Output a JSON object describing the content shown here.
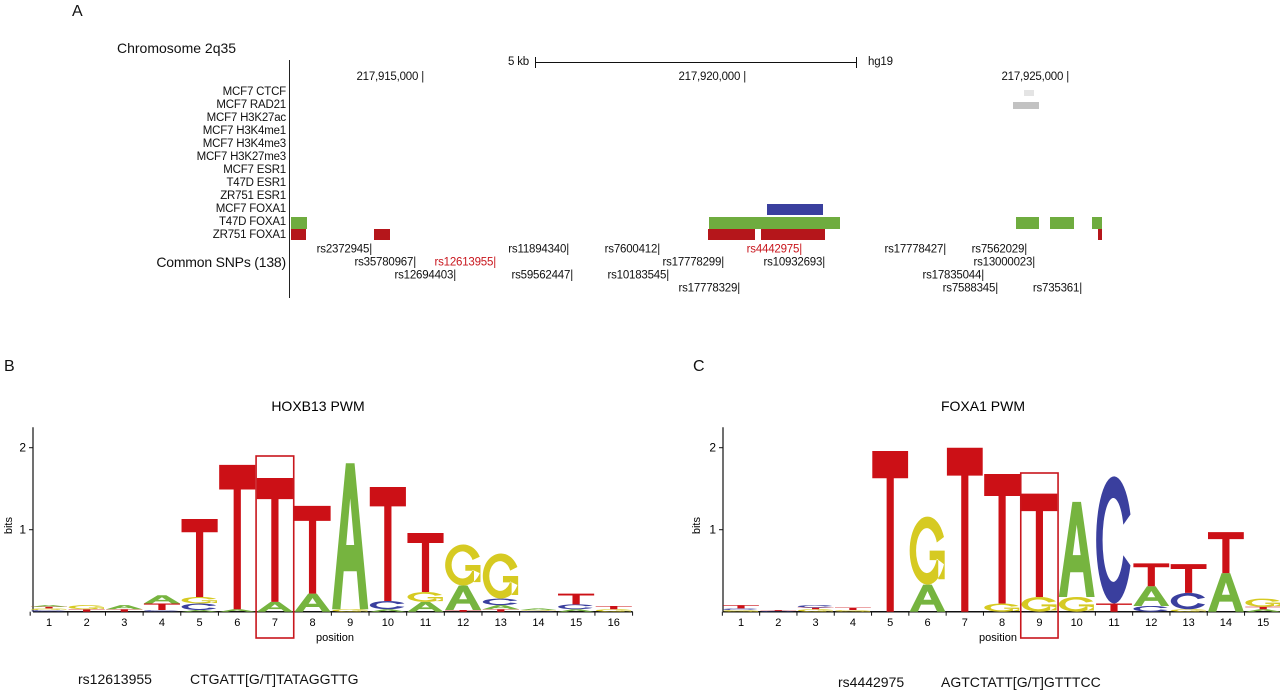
{
  "panels": {
    "a": "A",
    "b": "B",
    "c": "C"
  },
  "browser": {
    "region_label": "Chromosome 2q35",
    "scale_label": "5 kb",
    "assembly": "hg19",
    "positions": [
      "217,915,000",
      "217,920,000",
      "217,925,000"
    ],
    "tracks": [
      "MCF7 CTCF",
      "MCF7 RAD21",
      "MCF7 H3K27ac",
      "MCF7 H3K4me1",
      "MCF7 H3K4me3",
      "MCF7 H3K27me3",
      "MCF7 ESR1",
      "T47D ESR1",
      "ZR751 ESR1",
      "MCF7 FOXA1",
      "T47D FOXA1",
      "ZR751 FOXA1"
    ],
    "snp_track_label": "Common SNPs (138)",
    "snps": [
      "rs2372945",
      "rs11894340",
      "rs7600412",
      "rs4442975",
      "rs17778427",
      "rs7562029",
      "rs35780967",
      "rs12613955",
      "rs17778299",
      "rs10932693",
      "rs13000023",
      "rs12694403",
      "rs59562447",
      "rs10183545",
      "rs17835044",
      "rs17778329",
      "rs7588345",
      "rs735361"
    ],
    "highlighted_snps": [
      "rs12613955",
      "rs4442975"
    ],
    "colors": {
      "foxa1_mcf7": "#3a3f9e",
      "foxa1_t47d": "#6fac3f",
      "foxa1_zr751": "#b5161b",
      "ctcf": "#e4e4e4",
      "rad21": "#c2c2c2",
      "highlight": "#c8161d"
    }
  },
  "logo_b": {
    "snp": "rs12613955",
    "sequence": "CTGATT[G/T]TATAGGTTG"
  },
  "logo_c": {
    "snp": "rs4442975",
    "sequence": "AGTCTATT[G/T]GTTTCC"
  },
  "chart_data": [
    {
      "type": "sequence-logo",
      "title": "HOXB13 PWM",
      "xlabel": "position",
      "ylabel": "bits",
      "ylim": [
        0,
        2.25
      ],
      "yticks": [
        "1",
        "2"
      ],
      "highlight_position": 7,
      "letter_colors": {
        "A": "#76b43f",
        "C": "#3a3f9e",
        "G": "#d6ca22",
        "T": "#cc1016"
      },
      "positions": [
        {
          "pos": "1",
          "stack": [
            [
              "C",
              0.02
            ],
            [
              "G",
              0.02
            ],
            [
              "T",
              0.02
            ],
            [
              "A",
              0.02
            ]
          ]
        },
        {
          "pos": "2",
          "stack": [
            [
              "T",
              0.03
            ],
            [
              "G",
              0.05
            ]
          ]
        },
        {
          "pos": "3",
          "stack": [
            [
              "T",
              0.03
            ],
            [
              "A",
              0.05
            ]
          ]
        },
        {
          "pos": "4",
          "stack": [
            [
              "C",
              0.02
            ],
            [
              "T",
              0.08
            ],
            [
              "A",
              0.1
            ]
          ]
        },
        {
          "pos": "5",
          "stack": [
            [
              "A",
              0.02
            ],
            [
              "C",
              0.08
            ],
            [
              "G",
              0.08
            ],
            [
              "T",
              0.95
            ]
          ]
        },
        {
          "pos": "6",
          "stack": [
            [
              "A",
              0.03
            ],
            [
              "T",
              1.76
            ]
          ]
        },
        {
          "pos": "7",
          "stack": [
            [
              "A",
              0.12
            ],
            [
              "T",
              1.51
            ]
          ]
        },
        {
          "pos": "8",
          "stack": [
            [
              "A",
              0.22
            ],
            [
              "T",
              1.07
            ]
          ]
        },
        {
          "pos": "9",
          "stack": [
            [
              "G",
              0.03
            ],
            [
              "A",
              1.78
            ]
          ]
        },
        {
          "pos": "10",
          "stack": [
            [
              "A",
              0.03
            ],
            [
              "C",
              0.1
            ],
            [
              "T",
              1.39
            ]
          ]
        },
        {
          "pos": "11",
          "stack": [
            [
              "A",
              0.12
            ],
            [
              "G",
              0.12
            ],
            [
              "T",
              0.72
            ]
          ]
        },
        {
          "pos": "12",
          "stack": [
            [
              "T",
              0.02
            ],
            [
              "A",
              0.3
            ],
            [
              "G",
              0.5
            ]
          ]
        },
        {
          "pos": "13",
          "stack": [
            [
              "T",
              0.03
            ],
            [
              "A",
              0.05
            ],
            [
              "C",
              0.08
            ],
            [
              "G",
              0.55
            ]
          ]
        },
        {
          "pos": "14",
          "stack": [
            [
              "C",
              0.01
            ],
            [
              "G",
              0.01
            ],
            [
              "A",
              0.02
            ]
          ]
        },
        {
          "pos": "15",
          "stack": [
            [
              "A",
              0.03
            ],
            [
              "C",
              0.06
            ],
            [
              "T",
              0.13
            ]
          ]
        },
        {
          "pos": "16",
          "stack": [
            [
              "G",
              0.03
            ],
            [
              "T",
              0.04
            ]
          ]
        }
      ]
    },
    {
      "type": "sequence-logo",
      "title": "FOXA1 PWM",
      "xlabel": "position",
      "ylabel": "bits",
      "ylim": [
        0,
        2.25
      ],
      "yticks": [
        "1",
        "2"
      ],
      "highlight_position": 9,
      "letter_colors": {
        "A": "#76b43f",
        "C": "#3a3f9e",
        "G": "#d6ca22",
        "T": "#cc1016"
      },
      "positions": [
        {
          "pos": "1",
          "stack": [
            [
              "G",
              0.02
            ],
            [
              "C",
              0.02
            ],
            [
              "T",
              0.04
            ]
          ]
        },
        {
          "pos": "2",
          "stack": [
            [
              "C",
              0.01
            ],
            [
              "T",
              0.01
            ]
          ]
        },
        {
          "pos": "3",
          "stack": [
            [
              "G",
              0.03
            ],
            [
              "T",
              0.02
            ],
            [
              "C",
              0.03
            ]
          ]
        },
        {
          "pos": "4",
          "stack": [
            [
              "G",
              0.02
            ],
            [
              "T",
              0.03
            ]
          ]
        },
        {
          "pos": "5",
          "stack": [
            [
              "T",
              1.96
            ]
          ]
        },
        {
          "pos": "6",
          "stack": [
            [
              "A",
              0.33
            ],
            [
              "G",
              0.83
            ]
          ]
        },
        {
          "pos": "7",
          "stack": [
            [
              "T",
              2.0
            ]
          ]
        },
        {
          "pos": "8",
          "stack": [
            [
              "G",
              0.1
            ],
            [
              "T",
              1.58
            ]
          ]
        },
        {
          "pos": "9",
          "stack": [
            [
              "G",
              0.18
            ],
            [
              "T",
              1.26
            ]
          ]
        },
        {
          "pos": "10",
          "stack": [
            [
              "G",
              0.18
            ],
            [
              "A",
              1.16
            ]
          ]
        },
        {
          "pos": "11",
          "stack": [
            [
              "T",
              0.1
            ],
            [
              "C",
              1.55
            ]
          ]
        },
        {
          "pos": "12",
          "stack": [
            [
              "C",
              0.07
            ],
            [
              "A",
              0.24
            ],
            [
              "T",
              0.28
            ]
          ]
        },
        {
          "pos": "13",
          "stack": [
            [
              "G",
              0.03
            ],
            [
              "C",
              0.2
            ],
            [
              "T",
              0.35
            ]
          ]
        },
        {
          "pos": "14",
          "stack": [
            [
              "A",
              0.47
            ],
            [
              "T",
              0.5
            ]
          ]
        },
        {
          "pos": "15",
          "stack": [
            [
              "A",
              0.03
            ],
            [
              "T",
              0.03
            ],
            [
              "G",
              0.1
            ]
          ]
        }
      ]
    }
  ]
}
